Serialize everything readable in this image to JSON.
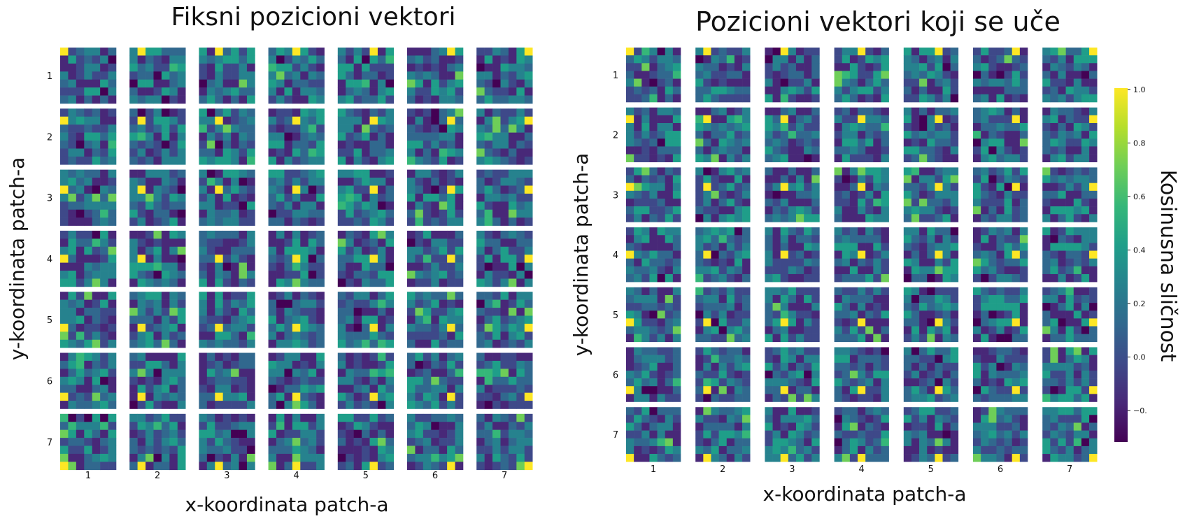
{
  "figure": {
    "left_title": "Fiksni pozicioni vektori",
    "right_title": "Pozicioni vektori koji se uče",
    "colorbar_label": "Kosinusna sličnost"
  },
  "chart_data": [
    {
      "type": "heatmap",
      "title": "Fiksni pozicioni vektori",
      "xlabel": "x-koordinata patch-a",
      "ylabel": "y-koordinata patch-a",
      "x_ticks": [
        "1",
        "2",
        "3",
        "4",
        "5",
        "6",
        "7"
      ],
      "y_ticks": [
        "1",
        "2",
        "3",
        "4",
        "5",
        "6",
        "7"
      ],
      "grid_size": [
        7,
        7
      ],
      "cell_grid_size": [
        7,
        7
      ],
      "value_range": [
        -0.3,
        1.0
      ],
      "diagonal_value": 1.0,
      "colormap": "viridis",
      "seed": 17
    },
    {
      "type": "heatmap",
      "title": "Pozicioni vektori koji se uče",
      "xlabel": "x-koordinata patch-a",
      "ylabel": "y-koordinata patch-a",
      "x_ticks": [
        "1",
        "2",
        "3",
        "4",
        "5",
        "6",
        "7"
      ],
      "y_ticks": [
        "1",
        "2",
        "3",
        "4",
        "5",
        "6",
        "7"
      ],
      "grid_size": [
        7,
        7
      ],
      "cell_grid_size": [
        7,
        7
      ],
      "value_range": [
        -0.3,
        1.0
      ],
      "diagonal_value": 1.0,
      "colormap": "viridis",
      "seed": 91,
      "colorbar": {
        "label": "Kosinusna sličnost",
        "ticks": [
          "1.0",
          "0.8",
          "0.6",
          "0.4",
          "0.2",
          "0.0",
          "−0."
        ]
      }
    }
  ],
  "colors": {
    "viridis": [
      "#440154",
      "#482878",
      "#3e4989",
      "#31688e",
      "#26828e",
      "#1f9e89",
      "#35b779",
      "#6ece58",
      "#b5de2b",
      "#fde725"
    ]
  }
}
